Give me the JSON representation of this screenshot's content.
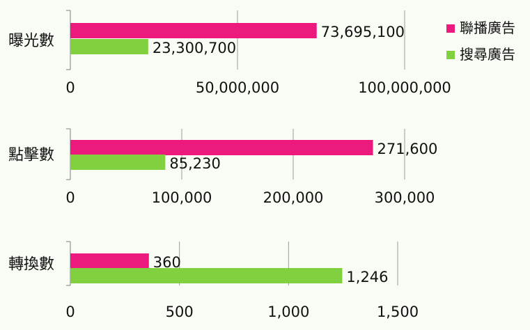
{
  "chart_data": [
    {
      "type": "bar",
      "orientation": "horizontal",
      "category": "曝光數",
      "series": [
        {
          "name": "聯播廣告",
          "value": 73695100,
          "label": "73,695,100"
        },
        {
          "name": "搜尋廣告",
          "value": 23300700,
          "label": "23,300,700"
        }
      ],
      "xlim": [
        0,
        100000000
      ],
      "ticks": [
        0,
        50000000,
        100000000
      ],
      "tick_labels": [
        "0",
        "50,000,000",
        "100,000,000"
      ],
      "grid": true
    },
    {
      "type": "bar",
      "orientation": "horizontal",
      "category": "點擊數",
      "series": [
        {
          "name": "聯播廣告",
          "value": 271600,
          "label": "271,600"
        },
        {
          "name": "搜尋廣告",
          "value": 85230,
          "label": "85,230"
        }
      ],
      "xlim": [
        0,
        300000
      ],
      "ticks": [
        0,
        100000,
        200000,
        300000
      ],
      "tick_labels": [
        "0",
        "100,000",
        "200,000",
        "300,000"
      ],
      "grid": true
    },
    {
      "type": "bar",
      "orientation": "horizontal",
      "category": "轉換數",
      "series": [
        {
          "name": "聯播廣告",
          "value": 360,
          "label": "360"
        },
        {
          "name": "搜尋廣告",
          "value": 1246,
          "label": "1,246"
        }
      ],
      "xlim": [
        0,
        1500
      ],
      "ticks": [
        0,
        500,
        1000,
        1500
      ],
      "tick_labels": [
        "0",
        "500",
        "1,000",
        "1,500"
      ],
      "grid": true
    }
  ],
  "legend": {
    "placement": "top-right",
    "items": [
      {
        "name": "聯播廣告",
        "color": "#ec1a7c"
      },
      {
        "name": "搜尋廣告",
        "color": "#80d040"
      }
    ]
  }
}
